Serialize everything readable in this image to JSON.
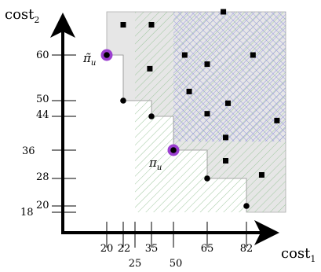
{
  "axes": {
    "x": {
      "name": "cost",
      "subscript": "1"
    },
    "y": {
      "name": "cost",
      "subscript": "2"
    }
  },
  "x_ticks_upper": [
    "20",
    "22",
    "35",
    "65",
    "82"
  ],
  "x_ticks_lower": [
    "25",
    "50"
  ],
  "y_ticks_left": [
    "60",
    "50",
    "44",
    "36",
    "28",
    "18"
  ],
  "y_tick_extra": [
    "20"
  ],
  "labels": {
    "pi_tilde": {
      "text": "π̃",
      "subscript": "u"
    },
    "pi": {
      "text": "π",
      "subscript": "u"
    }
  },
  "colors": {
    "region_gray": "#e6e6e6",
    "hatch_green": "#9fc79f",
    "crosshatch_blue": "#8c8ce0",
    "highlight": "#9b3fd0",
    "ink": "#000000"
  },
  "chart_data": {
    "type": "scatter",
    "x_ticks": [
      20,
      22,
      25,
      35,
      50,
      65,
      82
    ],
    "y_ticks": [
      18,
      20,
      28,
      36,
      44,
      50,
      60
    ],
    "pareto_points": [
      [
        20,
        60
      ],
      [
        22,
        50
      ],
      [
        35,
        44
      ],
      [
        50,
        36
      ],
      [
        65,
        28
      ],
      [
        82,
        20
      ]
    ],
    "highlighted_points": [
      [
        20,
        60
      ],
      [
        50,
        36
      ]
    ],
    "dominated_points": [
      [
        22,
        67
      ],
      [
        35,
        67
      ],
      [
        72,
        70
      ],
      [
        34,
        57
      ],
      [
        55,
        60
      ],
      [
        65,
        58
      ],
      [
        85,
        60
      ],
      [
        57,
        52
      ],
      [
        74,
        49
      ],
      [
        65,
        45
      ],
      [
        96,
        43
      ],
      [
        73,
        39
      ],
      [
        73,
        33
      ],
      [
        89,
        29
      ]
    ]
  }
}
